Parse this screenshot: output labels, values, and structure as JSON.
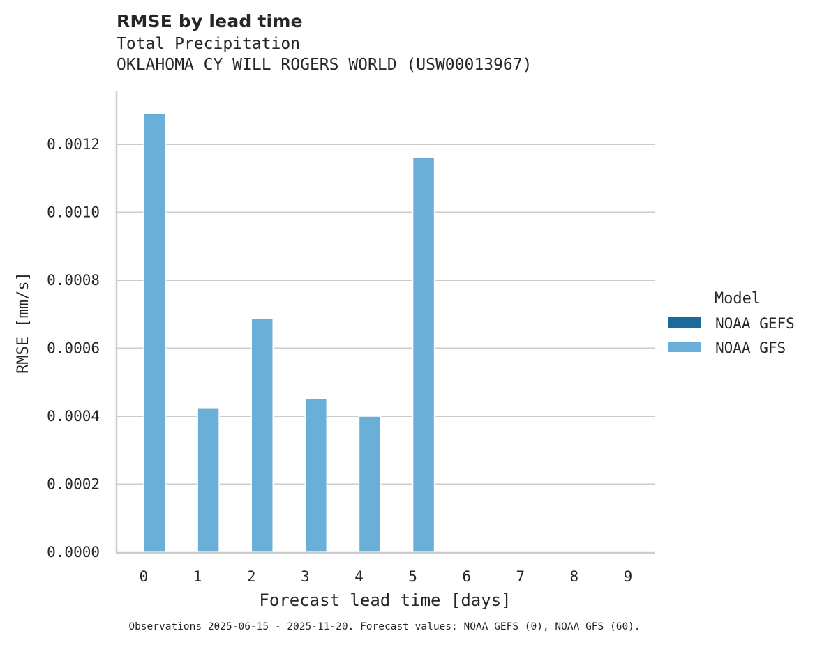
{
  "header": {
    "title": "RMSE by lead time",
    "subtitle_variable": "Total Precipitation",
    "subtitle_station": "OKLAHOMA CY WILL ROGERS WORLD (USW00013967)"
  },
  "footer": {
    "note": "Observations 2025-06-15 - 2025-11-20. Forecast values: NOAA GEFS (0), NOAA GFS (60)."
  },
  "colors": {
    "gefs": "#1a6b9c",
    "gfs": "#69afd8",
    "grid": "#cccccc",
    "text": "#262626"
  },
  "chart_data": {
    "type": "bar",
    "title": "RMSE by lead time",
    "subtitle": [
      "Total Precipitation",
      "OKLAHOMA CY WILL ROGERS WORLD (USW00013967)"
    ],
    "xlabel": "Forecast lead time [days]",
    "ylabel": "RMSE [mm/s]",
    "categories": [
      "0",
      "1",
      "2",
      "3",
      "4",
      "5",
      "6",
      "7",
      "8",
      "9"
    ],
    "series": [
      {
        "name": "NOAA GEFS",
        "color": "#1a6b9c",
        "values": [
          null,
          null,
          null,
          null,
          null,
          null,
          null,
          null,
          null,
          null
        ]
      },
      {
        "name": "NOAA GFS",
        "color": "#69afd8",
        "values": [
          0.00129,
          0.000425,
          0.000688,
          0.000451,
          0.0004,
          0.001161,
          null,
          null,
          null,
          null
        ]
      }
    ],
    "ylim": [
      0,
      0.00133
    ],
    "yticks": [
      "0.0000",
      "0.0002",
      "0.0004",
      "0.0006",
      "0.0008",
      "0.0010",
      "0.0012"
    ],
    "ytick_values": [
      0,
      0.0002,
      0.0004,
      0.0006,
      0.0008,
      0.001,
      0.0012
    ],
    "grid": "y",
    "legend": {
      "title": "Model",
      "position": "right",
      "entries": [
        "NOAA GEFS",
        "NOAA GFS"
      ]
    }
  }
}
